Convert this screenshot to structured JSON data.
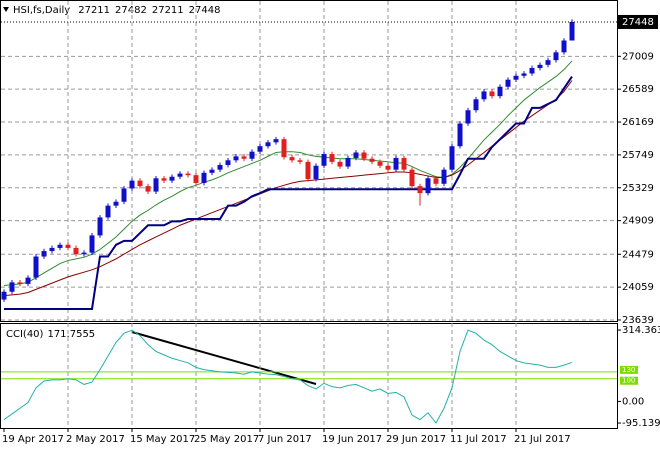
{
  "chart_data": [
    {
      "type": "candlestick",
      "title": "HSI,fs,Daily",
      "categories": [
        "19 Apr 2017",
        null,
        null,
        null,
        null,
        null,
        null,
        null,
        "2 May 2017",
        null,
        null,
        null,
        null,
        null,
        null,
        null,
        "15 May 2017",
        null,
        null,
        null,
        null,
        null,
        null,
        null,
        "25 May 2017",
        null,
        null,
        null,
        null,
        null,
        null,
        null,
        "7 Jun 2017",
        null,
        null,
        null,
        null,
        null,
        null,
        null,
        "19 Jun 2017",
        null,
        null,
        null,
        null,
        null,
        null,
        null,
        "29 Jun 2017",
        null,
        null,
        null,
        null,
        null,
        null,
        null,
        "11 Jul 2017",
        null,
        null,
        null,
        null,
        null,
        null,
        null,
        "21 Jul 2017",
        null,
        null,
        null,
        null,
        null,
        null,
        null
      ],
      "open": [
        23900,
        24000,
        24120,
        24100,
        24180,
        24450,
        24520,
        24560,
        24600,
        24560,
        24480,
        24500,
        24720,
        24950,
        25100,
        25150,
        25320,
        25420,
        25350,
        25280,
        25450,
        25420,
        25470,
        25510,
        25490,
        25390,
        25520,
        25560,
        25620,
        25680,
        25730,
        25700,
        25790,
        25860,
        25910,
        25950,
        25720,
        25680,
        25660,
        25440,
        25610,
        25760,
        25660,
        25600,
        25710,
        25780,
        25700,
        25660,
        25610,
        25560,
        25710,
        25560,
        25350,
        25260,
        25450,
        25380,
        25560,
        25860,
        26150,
        26320,
        26460,
        26560,
        26500,
        26620,
        26710,
        26760,
        26790,
        26860,
        26900,
        26960,
        27060,
        27211
      ],
      "high": [
        24030,
        24150,
        24150,
        24210,
        24480,
        24550,
        24590,
        24630,
        24630,
        24590,
        24530,
        24750,
        24980,
        25130,
        25180,
        25350,
        25450,
        25450,
        25380,
        25480,
        25480,
        25500,
        25540,
        25540,
        25520,
        25550,
        25590,
        25650,
        25710,
        25760,
        25760,
        25820,
        25890,
        25940,
        25980,
        25980,
        25750,
        25710,
        25690,
        25640,
        25790,
        25790,
        25690,
        25740,
        25810,
        25810,
        25730,
        25690,
        25640,
        25740,
        25740,
        25590,
        25380,
        25480,
        25480,
        25590,
        25890,
        26180,
        26350,
        26490,
        26590,
        26590,
        26650,
        26740,
        26790,
        26820,
        26890,
        26930,
        26990,
        27090,
        27240,
        27482
      ],
      "low": [
        23870,
        23970,
        24070,
        24070,
        24150,
        24420,
        24490,
        24530,
        24530,
        24450,
        24450,
        24470,
        24690,
        24920,
        25070,
        25120,
        25290,
        25320,
        25250,
        25250,
        25390,
        25390,
        25440,
        25460,
        25360,
        25360,
        25490,
        25530,
        25590,
        25650,
        25670,
        25670,
        25760,
        25830,
        25880,
        25690,
        25650,
        25630,
        25410,
        25410,
        25580,
        25630,
        25570,
        25570,
        25680,
        25670,
        25630,
        25580,
        25530,
        25530,
        25530,
        25320,
        25100,
        25230,
        25350,
        25350,
        25530,
        25830,
        26120,
        26290,
        26430,
        26470,
        26470,
        26590,
        26680,
        26730,
        26760,
        26830,
        26870,
        26930,
        27030,
        27211
      ],
      "close": [
        24000,
        24120,
        24100,
        24180,
        24450,
        24520,
        24560,
        24600,
        24560,
        24480,
        24500,
        24720,
        24950,
        25100,
        25150,
        25320,
        25420,
        25350,
        25280,
        25450,
        25420,
        25470,
        25510,
        25490,
        25390,
        25520,
        25560,
        25620,
        25680,
        25730,
        25700,
        25790,
        25860,
        25910,
        25950,
        25720,
        25680,
        25660,
        25440,
        25610,
        25760,
        25660,
        25600,
        25710,
        25780,
        25700,
        25660,
        25610,
        25560,
        25710,
        25560,
        25350,
        25260,
        25450,
        25380,
        25560,
        25860,
        26150,
        26320,
        26460,
        26560,
        26500,
        26620,
        26710,
        26760,
        26790,
        26860,
        26900,
        26960,
        27060,
        27211,
        27448
      ],
      "up_color": "#1010c8",
      "down_color": "#e02020",
      "lines": [
        {
          "color": "#2e8b2e",
          "values": [
            24080,
            24090,
            24100,
            24120,
            24180,
            24240,
            24300,
            24360,
            24400,
            24420,
            24440,
            24480,
            24540,
            24620,
            24700,
            24800,
            24900,
            24980,
            25040,
            25110,
            25170,
            25220,
            25280,
            25330,
            25360,
            25400,
            25430,
            25470,
            25520,
            25560,
            25600,
            25640,
            25680,
            25730,
            25780,
            25790,
            25790,
            25780,
            25750,
            25730,
            25720,
            25710,
            25700,
            25700,
            25700,
            25690,
            25680,
            25670,
            25660,
            25650,
            25640,
            25600,
            25550,
            25510,
            25470,
            25460,
            25500,
            25590,
            25700,
            25820,
            25940,
            26040,
            26140,
            26250,
            26350,
            26450,
            26530,
            26610,
            26680,
            26750,
            26840,
            26950
          ]
        },
        {
          "color": "#8b0000",
          "values": [
            23950,
            23960,
            23970,
            23990,
            24030,
            24070,
            24110,
            24150,
            24190,
            24220,
            24250,
            24280,
            24320,
            24370,
            24420,
            24480,
            24540,
            24600,
            24650,
            24700,
            24750,
            24800,
            24850,
            24890,
            24930,
            24970,
            25010,
            25050,
            25090,
            25130,
            25170,
            25210,
            25250,
            25290,
            25330,
            25360,
            25390,
            25410,
            25420,
            25430,
            25440,
            25450,
            25460,
            25470,
            25480,
            25490,
            25500,
            25510,
            25520,
            25530,
            25530,
            25520,
            25500,
            25480,
            25460,
            25460,
            25490,
            25550,
            25620,
            25700,
            25780,
            25860,
            25940,
            26020,
            26100,
            26180,
            26250,
            26320,
            26390,
            26460,
            26560,
            26700
          ]
        },
        {
          "color": "#000080",
          "values": [
            23780,
            23780,
            23780,
            23780,
            23780,
            23780,
            23780,
            23780,
            23780,
            23780,
            23780,
            23780,
            24450,
            24450,
            24600,
            24650,
            24650,
            24750,
            24850,
            24850,
            24850,
            24900,
            24900,
            24930,
            24930,
            24930,
            24930,
            24930,
            25100,
            25100,
            25150,
            25220,
            25260,
            25310,
            25310,
            25310,
            25310,
            25310,
            25310,
            25310,
            25310,
            25310,
            25310,
            25310,
            25310,
            25310,
            25310,
            25310,
            25310,
            25310,
            25310,
            25310,
            25310,
            25310,
            25310,
            25310,
            25310,
            25500,
            25700,
            25700,
            25700,
            25850,
            25950,
            26050,
            26150,
            26150,
            26350,
            26350,
            26400,
            26450,
            26600,
            26750
          ]
        }
      ],
      "ylim": [
        23626,
        27716
      ],
      "yticks": [
        27009,
        26589,
        26169,
        25749,
        25329,
        24909,
        24479,
        24059,
        23639
      ],
      "grid": true
    },
    {
      "type": "line",
      "title": "CCI(40)",
      "last_value": 171.7555,
      "color": "#20b2aa",
      "values": [
        -80,
        -55,
        -30,
        -5,
        60,
        90,
        95,
        95,
        100,
        95,
        75,
        85,
        140,
        200,
        260,
        300,
        314,
        290,
        250,
        220,
        205,
        190,
        180,
        170,
        150,
        140,
        135,
        130,
        128,
        125,
        120,
        130,
        125,
        120,
        118,
        110,
        100,
        95,
        70,
        55,
        80,
        65,
        60,
        70,
        75,
        60,
        45,
        55,
        35,
        40,
        20,
        -60,
        -80,
        -50,
        -95,
        -30,
        60,
        220,
        314,
        300,
        270,
        250,
        220,
        200,
        180,
        170,
        165,
        160,
        150,
        150,
        160,
        171.7555
      ],
      "levels": [
        130,
        100
      ],
      "level_color": "#7fdd00",
      "ylim": [
        -117,
        341
      ],
      "yticks": [
        314.3633,
        {
          "value": 0,
          "label": "0.00"
        },
        -95.1391
      ]
    }
  ]
}
